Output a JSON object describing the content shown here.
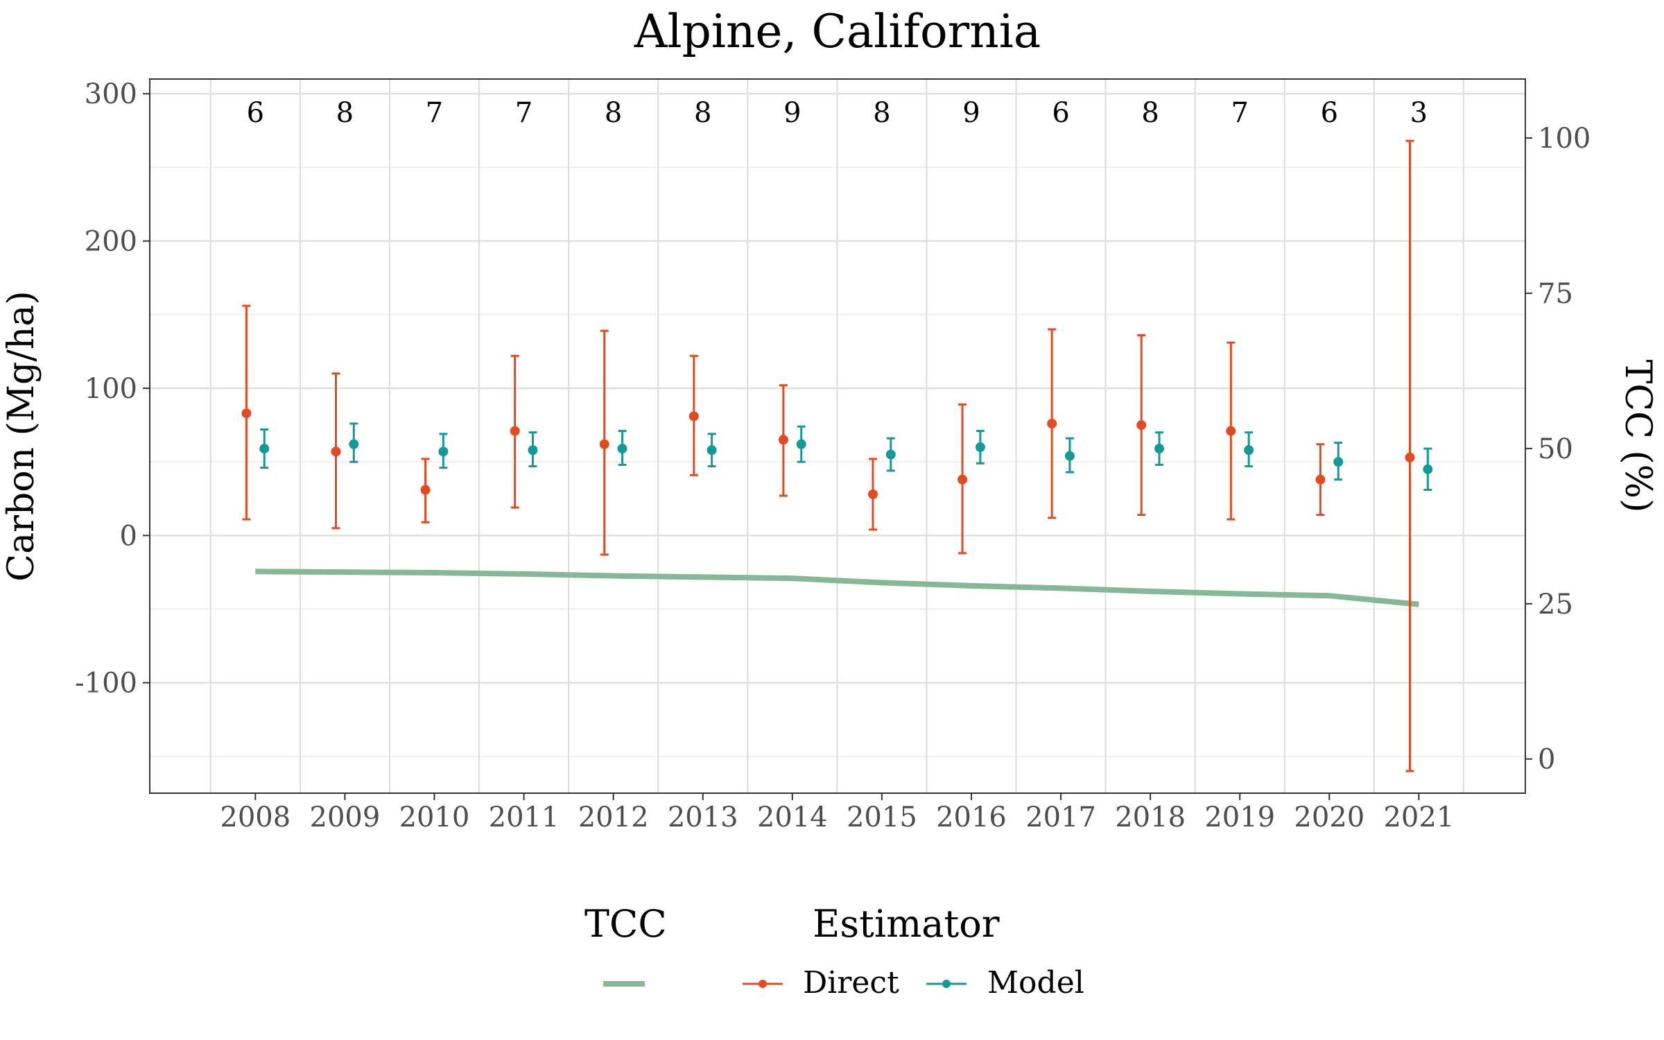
{
  "chart_data": {
    "type": "line",
    "title": "Alpine, California",
    "xlabel": "",
    "ylabel": "Carbon (Mg/ha)",
    "y2label": "TCC (%)",
    "categories": [
      "2008",
      "2009",
      "2010",
      "2011",
      "2012",
      "2013",
      "2014",
      "2015",
      "2016",
      "2017",
      "2018",
      "2019",
      "2020",
      "2021"
    ],
    "ylim": [
      -175,
      310
    ],
    "y2lim": [
      -5.5,
      109.5
    ],
    "yticks": [
      -100,
      0,
      100,
      200,
      300
    ],
    "yticks_minor": [
      -150,
      -50,
      50,
      150,
      250
    ],
    "y2ticks": [
      0,
      25,
      50,
      75,
      100
    ],
    "y2ticks_minor": [
      12.5,
      37.5,
      62.5,
      87.5
    ],
    "grid": true,
    "legend_position": "bottom",
    "counts": [
      6,
      8,
      7,
      7,
      8,
      8,
      9,
      8,
      9,
      6,
      8,
      7,
      6,
      3
    ],
    "series": [
      {
        "name": "Direct",
        "legend": "Estimator",
        "color": "#e34a1f",
        "values": [
          83,
          57,
          31,
          71,
          62,
          81,
          65,
          28,
          38,
          76,
          75,
          71,
          38,
          53
        ],
        "lower": [
          11,
          5,
          9,
          19,
          -13,
          41,
          27,
          4,
          -12,
          12,
          14,
          11,
          14,
          -160
        ],
        "upper": [
          156,
          110,
          52,
          122,
          139,
          122,
          102,
          52,
          89,
          140,
          136,
          131,
          62,
          268
        ]
      },
      {
        "name": "Model",
        "legend": "Estimator",
        "color": "#149a96",
        "values": [
          59,
          62,
          57,
          58,
          59,
          58,
          62,
          55,
          60,
          54,
          59,
          58,
          50,
          45
        ],
        "lower": [
          46,
          50,
          46,
          47,
          48,
          47,
          50,
          44,
          49,
          43,
          48,
          47,
          38,
          31
        ],
        "upper": [
          72,
          76,
          69,
          70,
          71,
          69,
          74,
          66,
          71,
          66,
          70,
          70,
          63,
          59
        ]
      },
      {
        "name": "TCC",
        "legend": "TCC",
        "axis": "right",
        "color": "#86b896",
        "values": [
          30.2,
          30.1,
          30.0,
          29.8,
          29.5,
          29.3,
          29.1,
          28.4,
          27.9,
          27.5,
          27.0,
          26.6,
          26.3,
          24.9
        ]
      }
    ],
    "legend": {
      "tcc_title": "TCC",
      "tcc_entry": "",
      "estimator_title": "Estimator",
      "estimator_entries": [
        "Direct",
        "Model"
      ]
    }
  }
}
